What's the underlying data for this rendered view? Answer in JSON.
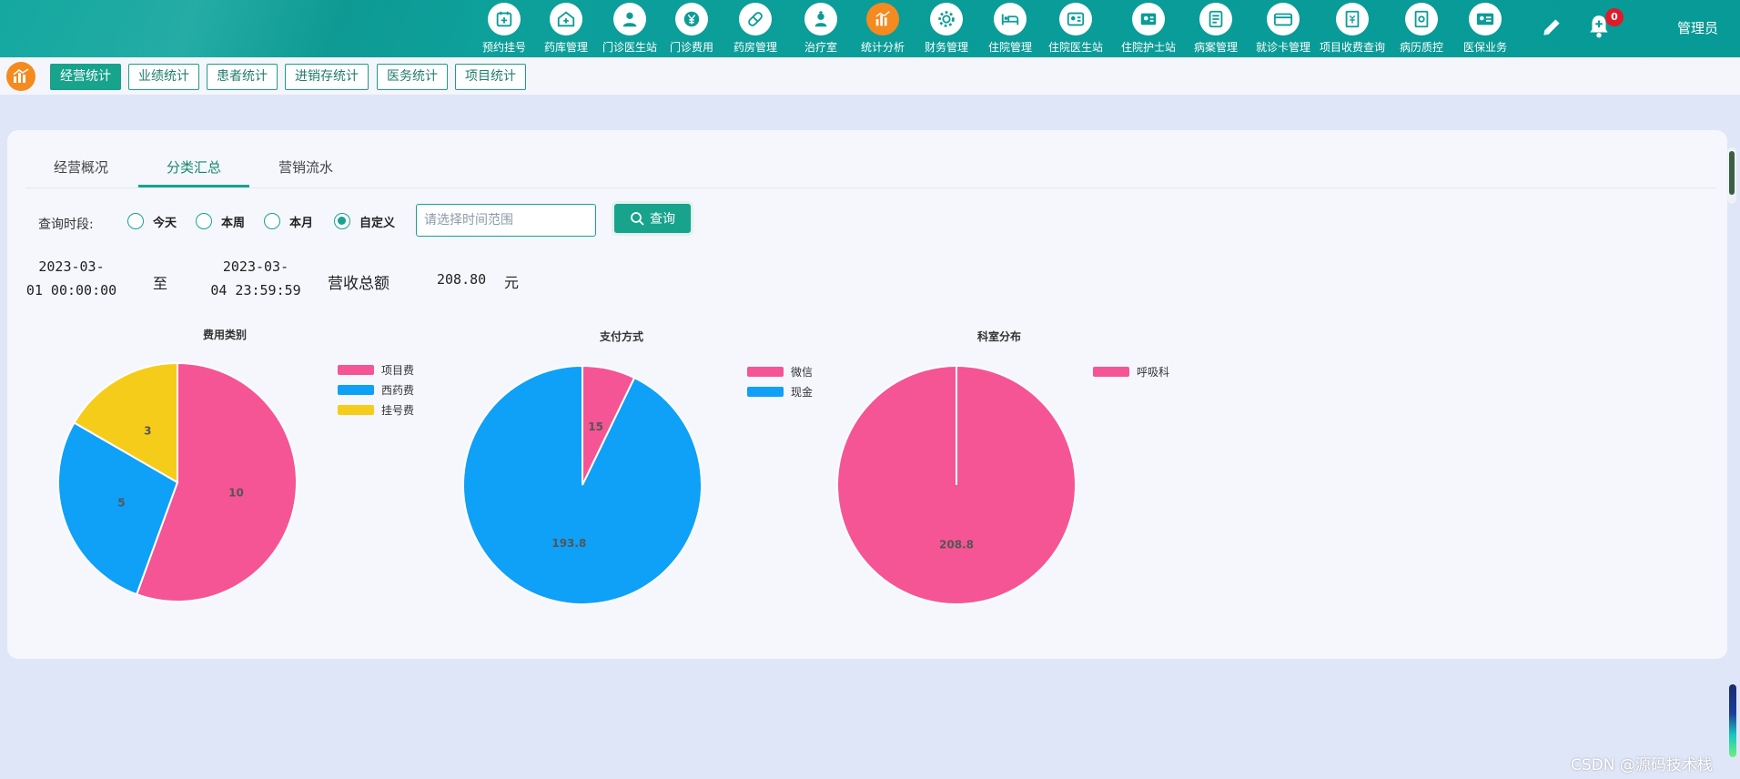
{
  "header": {
    "nav": [
      {
        "label": "预约挂号",
        "icon": "calendar-plus-icon"
      },
      {
        "label": "药库管理",
        "icon": "house-medical-icon"
      },
      {
        "label": "门诊医生站",
        "icon": "doctor-icon"
      },
      {
        "label": "门诊费用",
        "icon": "yen-icon"
      },
      {
        "label": "药房管理",
        "icon": "pill-icon"
      },
      {
        "label": "治疗室",
        "icon": "nurse-icon"
      },
      {
        "label": "统计分析",
        "icon": "bar-chart-icon"
      },
      {
        "label": "财务管理",
        "icon": "gear-icon"
      },
      {
        "label": "住院管理",
        "icon": "hospital-bed-icon"
      },
      {
        "label": "住院医生站",
        "icon": "id-card-doctor-icon"
      },
      {
        "label": "住院护士站",
        "icon": "nurse-card-icon"
      },
      {
        "label": "病案管理",
        "icon": "record-book-icon"
      },
      {
        "label": "就诊卡管理",
        "icon": "card-icon"
      },
      {
        "label": "项目收费查询",
        "icon": "fee-document-icon"
      },
      {
        "label": "病历质控",
        "icon": "quality-control-icon"
      },
      {
        "label": "医保业务",
        "icon": "insurance-card-icon"
      }
    ],
    "active_nav": "统计分析",
    "notification_count": "0",
    "user": "管理员",
    "accent": "#f58a1f"
  },
  "subtabs": [
    "经营统计",
    "业绩统计",
    "患者统计",
    "进销存统计",
    "医务统计",
    "项目统计"
  ],
  "active_subtab": "经营统计",
  "tabs": [
    "经营概况",
    "分类汇总",
    "营销流水"
  ],
  "active_tab": "分类汇总",
  "filter": {
    "label": "查询时段:",
    "options": [
      {
        "label": "今天",
        "checked": false
      },
      {
        "label": "本周",
        "checked": false
      },
      {
        "label": "本月",
        "checked": false
      },
      {
        "label": "自定义",
        "checked": true
      }
    ],
    "range_placeholder": "请选择时间范围",
    "search_label": "查询"
  },
  "summary": {
    "start_line1": "2023-03-",
    "start_line2": "01 00:00:00",
    "to": "至",
    "end_line1": "2023-03-",
    "end_line2": "04 23:59:59",
    "revenue_label": "营收总额",
    "revenue_value": "208.80",
    "revenue_unit": "元"
  },
  "chart_data": [
    {
      "type": "pie",
      "title": "费用类别",
      "categories": [
        "项目费",
        "西药费",
        "挂号费"
      ],
      "values": [
        10,
        5,
        3
      ],
      "colors": [
        "#f55595",
        "#0fa0f7",
        "#f6cc1a"
      ],
      "legend": "right"
    },
    {
      "type": "pie",
      "title": "支付方式",
      "categories": [
        "微信",
        "现金"
      ],
      "values": [
        15,
        193.8
      ],
      "colors": [
        "#f55595",
        "#0fa0f7"
      ],
      "legend": "right"
    },
    {
      "type": "pie",
      "title": "科室分布",
      "categories": [
        "呼吸科"
      ],
      "values": [
        208.8
      ],
      "colors": [
        "#f55595"
      ],
      "legend": "right"
    }
  ],
  "watermark": "CSDN @源码技术栈"
}
